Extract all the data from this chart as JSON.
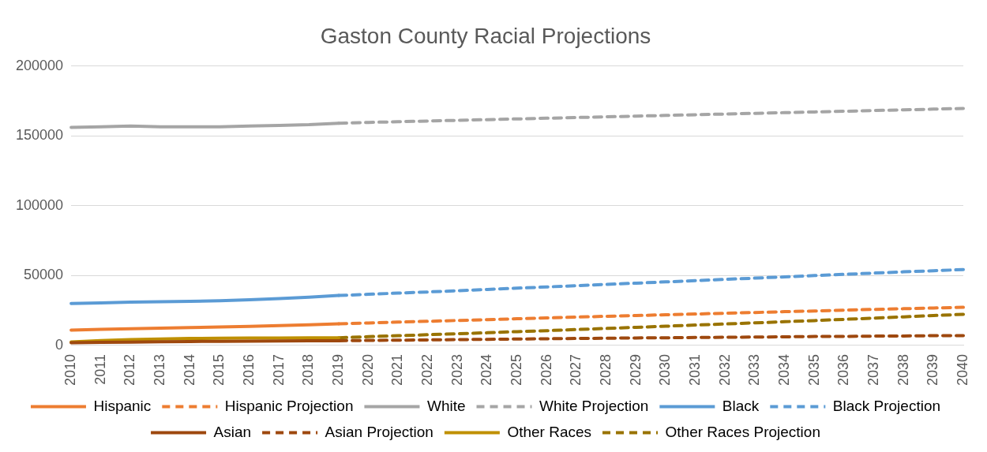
{
  "chart_data": {
    "type": "line",
    "title": "Gaston County Racial Projections",
    "categories": [
      "2010",
      "2011",
      "2012",
      "2013",
      "2014",
      "2015",
      "2016",
      "2017",
      "2018",
      "2019",
      "2020",
      "2021",
      "2022",
      "2023",
      "2024",
      "2025",
      "2026",
      "2027",
      "2028",
      "2029",
      "2030",
      "2031",
      "2032",
      "2033",
      "2034",
      "2035",
      "2036",
      "2037",
      "2038",
      "2039",
      "2040"
    ],
    "ylim": [
      0,
      200000
    ],
    "yticks": [
      0,
      50000,
      100000,
      150000,
      200000
    ],
    "grid": "y",
    "legend": "bottom",
    "marker": "none",
    "series": [
      {
        "name": "Hispanic",
        "color": "#ed7d31",
        "line_style": "solid",
        "values": [
          11000,
          11500,
          12000,
          12400,
          12800,
          13200,
          13600,
          14200,
          14800,
          15500,
          null,
          null,
          null,
          null,
          null,
          null,
          null,
          null,
          null,
          null,
          null,
          null,
          null,
          null,
          null,
          null,
          null,
          null,
          null,
          null,
          null
        ]
      },
      {
        "name": "Hispanic Projection",
        "color": "#ed7d31",
        "line_style": "dashed",
        "values": [
          null,
          null,
          null,
          null,
          null,
          null,
          null,
          null,
          null,
          15500,
          16100,
          16700,
          17300,
          17900,
          18500,
          19100,
          19700,
          20300,
          20900,
          21400,
          22000,
          22500,
          23100,
          23600,
          24200,
          24700,
          25300,
          25800,
          26300,
          26800,
          27300
        ]
      },
      {
        "name": "White",
        "color": "#a5a5a5",
        "line_style": "solid",
        "values": [
          156000,
          156500,
          157000,
          156500,
          156500,
          156500,
          157000,
          157500,
          158000,
          159000,
          null,
          null,
          null,
          null,
          null,
          null,
          null,
          null,
          null,
          null,
          null,
          null,
          null,
          null,
          null,
          null,
          null,
          null,
          null,
          null,
          null
        ]
      },
      {
        "name": "White Projection",
        "color": "#a5a5a5",
        "line_style": "dashed",
        "values": [
          null,
          null,
          null,
          null,
          null,
          null,
          null,
          null,
          null,
          159000,
          159600,
          160100,
          160600,
          161100,
          161600,
          162100,
          162600,
          163100,
          163600,
          164100,
          164600,
          165100,
          165600,
          166100,
          166600,
          167100,
          167600,
          168100,
          168600,
          169100,
          169600
        ]
      },
      {
        "name": "Black",
        "color": "#5b9bd5",
        "line_style": "solid",
        "values": [
          30000,
          30500,
          31000,
          31300,
          31600,
          32000,
          32700,
          33500,
          34500,
          35800,
          null,
          null,
          null,
          null,
          null,
          null,
          null,
          null,
          null,
          null,
          null,
          null,
          null,
          null,
          null,
          null,
          null,
          null,
          null,
          null,
          null
        ]
      },
      {
        "name": "Black Projection",
        "color": "#5b9bd5",
        "line_style": "dashed",
        "values": [
          null,
          null,
          null,
          null,
          null,
          null,
          null,
          null,
          null,
          35800,
          36600,
          37500,
          38300,
          39200,
          40100,
          41000,
          41900,
          42800,
          43700,
          44600,
          45500,
          46400,
          47300,
          48200,
          49100,
          50000,
          50900,
          51800,
          52700,
          53500,
          54300
        ]
      },
      {
        "name": "Asian",
        "color": "#9e480e",
        "line_style": "solid",
        "values": [
          2000,
          2200,
          2400,
          2600,
          2800,
          3000,
          3100,
          3200,
          3300,
          3400,
          null,
          null,
          null,
          null,
          null,
          null,
          null,
          null,
          null,
          null,
          null,
          null,
          null,
          null,
          null,
          null,
          null,
          null,
          null,
          null,
          null
        ]
      },
      {
        "name": "Asian Projection",
        "color": "#9e480e",
        "line_style": "dashed",
        "values": [
          null,
          null,
          null,
          null,
          null,
          null,
          null,
          null,
          null,
          3400,
          3600,
          3800,
          4000,
          4200,
          4400,
          4600,
          4800,
          5000,
          5200,
          5400,
          5500,
          5700,
          5900,
          6000,
          6200,
          6400,
          6500,
          6700,
          6800,
          7000,
          7100
        ]
      },
      {
        "name": "Other Races",
        "color": "#bf9000",
        "line_style": "solid",
        "values": [
          2500,
          3500,
          4200,
          4700,
          5000,
          5200,
          5300,
          5400,
          5500,
          5500,
          null,
          null,
          null,
          null,
          null,
          null,
          null,
          null,
          null,
          null,
          null,
          null,
          null,
          null,
          null,
          null,
          null,
          null,
          null,
          null,
          null
        ]
      },
      {
        "name": "Other Races Projection",
        "color": "#997300",
        "line_style": "dashed",
        "values": [
          null,
          null,
          null,
          null,
          null,
          null,
          null,
          null,
          null,
          5500,
          6300,
          7000,
          7700,
          8400,
          9100,
          9900,
          10600,
          11400,
          12200,
          13000,
          13800,
          14600,
          15400,
          16200,
          17000,
          17800,
          18700,
          19600,
          20500,
          21400,
          22300
        ]
      }
    ]
  }
}
